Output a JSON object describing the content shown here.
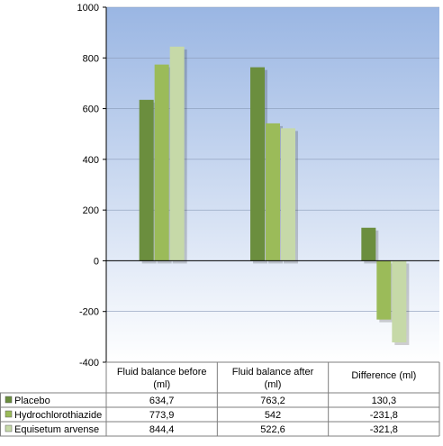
{
  "chart_data": {
    "type": "bar",
    "categories": [
      "Fluid balance before (ml)",
      "Fluid balance after (ml)",
      "Difference (ml)"
    ],
    "category_lines": [
      [
        "Fluid balance before",
        "(ml)"
      ],
      [
        "Fluid balance after",
        "(ml)"
      ],
      [
        "Difference (ml)"
      ]
    ],
    "series": [
      {
        "name": "Placebo",
        "values": [
          634.7,
          763.2,
          130.3
        ],
        "labels": [
          "634,7",
          "763,2",
          "130,3"
        ],
        "color": "#6b8e3e"
      },
      {
        "name": "Hydrochlorothiazide",
        "values": [
          773.9,
          542,
          -231.8
        ],
        "labels": [
          "773,9",
          "542",
          "-231,8"
        ],
        "color": "#9bbb59"
      },
      {
        "name": "Equisetum arvense",
        "values": [
          844.4,
          522.6,
          -321.8
        ],
        "labels": [
          "844,4",
          "522,6",
          "-321,8"
        ],
        "color": "#c6d9a8"
      }
    ],
    "ylim": [
      -400,
      1000
    ],
    "yticks": [
      1000,
      800,
      600,
      400,
      200,
      0,
      -200,
      -400
    ],
    "title": "",
    "xlabel": "",
    "ylabel": "",
    "grid": true,
    "legend": "data-table",
    "background_gradient": [
      "#9ab6e3",
      "#ffffff"
    ]
  }
}
